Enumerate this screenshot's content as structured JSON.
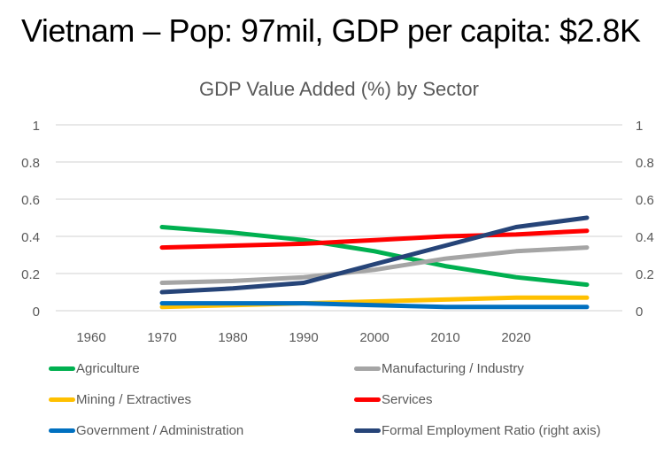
{
  "slide": {
    "title": "Vietnam – Pop: 97mil, GDP per capita:  $2.8K"
  },
  "chart_data": {
    "type": "line",
    "title": "GDP Value Added (%) by Sector",
    "xlabel": "",
    "ylabel": "",
    "categories": [
      "1960",
      "1970",
      "1980",
      "1990",
      "2000",
      "2010",
      "2020",
      ""
    ],
    "ylim": [
      0,
      1
    ],
    "y2lim": [
      0,
      1
    ],
    "yticks": [
      "0",
      "0.2",
      "0.4",
      "0.6",
      "0.8",
      "1"
    ],
    "y2ticks": [
      "0",
      "0.2",
      "0.4",
      "0.6",
      "0.8",
      "1"
    ],
    "grid": true,
    "legend_position": "bottom",
    "series": [
      {
        "name": "Agriculture",
        "color": "#00b050",
        "axis": "left",
        "values": [
          null,
          0.45,
          0.42,
          0.38,
          0.32,
          0.24,
          0.18,
          0.14
        ]
      },
      {
        "name": "Manufacturing / Industry",
        "color": "#a5a5a5",
        "axis": "left",
        "values": [
          null,
          0.15,
          0.16,
          0.18,
          0.22,
          0.28,
          0.32,
          0.34
        ]
      },
      {
        "name": "Mining / Extractives",
        "color": "#ffc000",
        "axis": "left",
        "values": [
          null,
          0.02,
          0.03,
          0.04,
          0.05,
          0.06,
          0.07,
          0.07
        ]
      },
      {
        "name": "Services",
        "color": "#ff0000",
        "axis": "left",
        "values": [
          null,
          0.34,
          0.35,
          0.36,
          0.38,
          0.4,
          0.41,
          0.43
        ]
      },
      {
        "name": "Government / Administration",
        "color": "#0070c0",
        "axis": "left",
        "values": [
          null,
          0.04,
          0.04,
          0.04,
          0.03,
          0.02,
          0.02,
          0.02
        ]
      },
      {
        "name": "Formal Employment Ratio (right axis)",
        "color": "#264478",
        "axis": "right",
        "values": [
          null,
          0.1,
          0.12,
          0.15,
          0.25,
          0.35,
          0.45,
          0.5
        ]
      }
    ]
  }
}
